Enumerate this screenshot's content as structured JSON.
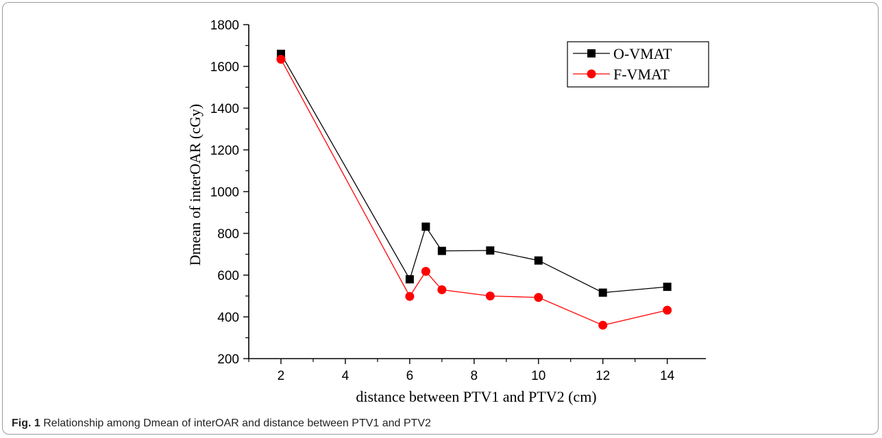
{
  "caption": {
    "label": "Fig. 1",
    "text": "Relationship among Dmean of interOAR and distance between PTV1 and PTV2"
  },
  "chart_data": {
    "type": "line",
    "xlabel": "distance between PTV1 and PTV2 (cm)",
    "ylabel": "Dmean of interOAR (cGy)",
    "xlim": [
      1,
      15.2
    ],
    "ylim": [
      200,
      1800
    ],
    "x_ticks": [
      2,
      4,
      6,
      8,
      10,
      12,
      14
    ],
    "y_ticks": [
      200,
      400,
      600,
      800,
      1000,
      1200,
      1400,
      1600,
      1800
    ],
    "grid": false,
    "legend_position": "top-right",
    "x": [
      2,
      6,
      6.5,
      7,
      8.5,
      10,
      12,
      14
    ],
    "series": [
      {
        "name": "O-VMAT",
        "color": "#000000",
        "marker": "square",
        "values": [
          1660,
          580,
          832,
          716,
          718,
          670,
          516,
          544
        ]
      },
      {
        "name": "F-VMAT",
        "color": "#ff0000",
        "marker": "circle",
        "values": [
          1634,
          498,
          618,
          530,
          500,
          493,
          360,
          432
        ]
      }
    ]
  }
}
